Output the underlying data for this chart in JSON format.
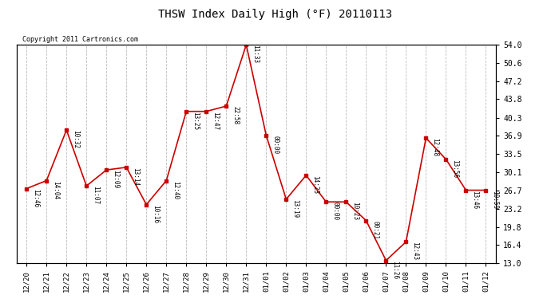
{
  "title": "THSW Index Daily High (°F) 20110113",
  "copyright": "Copyright 2011 Cartronics.com",
  "x_labels": [
    "12/20",
    "12/21",
    "12/22",
    "12/23",
    "12/24",
    "12/25",
    "12/26",
    "12/27",
    "12/28",
    "12/29",
    "12/30",
    "12/31",
    "01/01",
    "01/02",
    "01/03",
    "01/04",
    "01/05",
    "01/06",
    "01/07",
    "01/08",
    "01/09",
    "01/10",
    "01/11",
    "01/12"
  ],
  "y_values": [
    27.0,
    28.5,
    38.0,
    27.5,
    30.5,
    31.0,
    24.0,
    28.5,
    41.5,
    41.5,
    42.5,
    54.0,
    37.0,
    25.0,
    29.5,
    24.5,
    24.5,
    21.0,
    13.5,
    17.0,
    36.5,
    32.5,
    26.7,
    26.7
  ],
  "time_labels": [
    "12:46",
    "14:04",
    "10:32",
    "11:07",
    "12:09",
    "13:14",
    "10:16",
    "12:40",
    "13:25",
    "12:47",
    "22:58",
    "11:33",
    "00:00",
    "13:19",
    "14:23",
    "00:00",
    "10:23",
    "00:21",
    "11:26",
    "12:43",
    "12:48",
    "13:56",
    "13:46",
    "10:59"
  ],
  "ylim_min": 13.0,
  "ylim_max": 54.0,
  "y_ticks": [
    13.0,
    16.4,
    19.8,
    23.2,
    26.7,
    30.1,
    33.5,
    36.9,
    40.3,
    43.8,
    47.2,
    50.6,
    54.0
  ],
  "line_color": "#cc0000",
  "marker_color": "#cc0000",
  "bg_color": "#ffffff",
  "grid_color": "#bbbbbb",
  "font_family": "monospace"
}
